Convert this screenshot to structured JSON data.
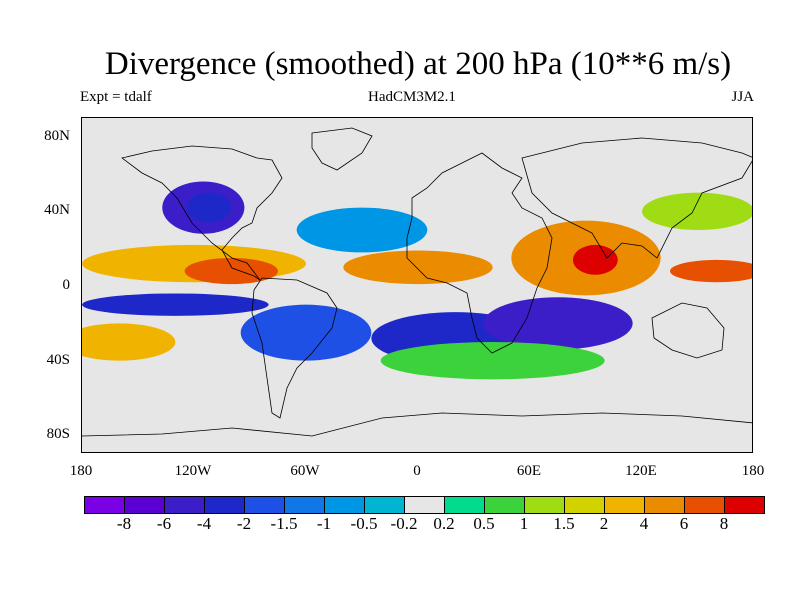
{
  "title": "Divergence (smoothed) at 200 hPa (10**6 m/s)",
  "experiment": "Expt = tdalf",
  "model": "HadCM3M2.1",
  "season": "JJA",
  "chart_data": {
    "type": "heatmap",
    "title": "Divergence (smoothed) at 200 hPa (10**6 m/s)",
    "x_range": [
      -180,
      180
    ],
    "y_range": [
      -90,
      90
    ],
    "lat_ticks": [
      {
        "value": 80,
        "label": "80N"
      },
      {
        "value": 40,
        "label": "40N"
      },
      {
        "value": 0,
        "label": "0"
      },
      {
        "value": -40,
        "label": "40S"
      },
      {
        "value": -80,
        "label": "80S"
      }
    ],
    "lon_ticks": [
      {
        "value": -180,
        "label": "180"
      },
      {
        "value": -120,
        "label": "120W"
      },
      {
        "value": -60,
        "label": "60W"
      },
      {
        "value": 0,
        "label": "0"
      },
      {
        "value": 60,
        "label": "60E"
      },
      {
        "value": 120,
        "label": "120E"
      },
      {
        "value": 180,
        "label": "180"
      }
    ],
    "levels": [
      {
        "color": "#7a00e6",
        "label": ""
      },
      {
        "color": "#5a00d2",
        "label": "-8"
      },
      {
        "color": "#3c1ec8",
        "label": "-6"
      },
      {
        "color": "#1e28c8",
        "label": "-4"
      },
      {
        "color": "#1e50e6",
        "label": "-2"
      },
      {
        "color": "#0f78e6",
        "label": "-1.5"
      },
      {
        "color": "#0096e6",
        "label": "-1"
      },
      {
        "color": "#00b4d2",
        "label": "-0.5"
      },
      {
        "color": "#e6e6e6",
        "label": "-0.2"
      },
      {
        "color": "#00dc8c",
        "label": "0.2"
      },
      {
        "color": "#3cd23c",
        "label": "0.5"
      },
      {
        "color": "#a0dc14",
        "label": "1"
      },
      {
        "color": "#d2d200",
        "label": "1.5"
      },
      {
        "color": "#f0b400",
        "label": "2"
      },
      {
        "color": "#eb8c00",
        "label": "4"
      },
      {
        "color": "#e65000",
        "label": "6"
      },
      {
        "color": "#dc0000",
        "label": "8"
      }
    ],
    "regions": [
      {
        "lon": -115,
        "lat": 42,
        "rx": 22,
        "ry": 14,
        "cat": 2
      },
      {
        "lon": -112,
        "lat": 42,
        "rx": 12,
        "ry": 8,
        "cat": 3
      },
      {
        "lon": -30,
        "lat": 30,
        "rx": 35,
        "ry": 12,
        "cat": 6
      },
      {
        "lon": -120,
        "lat": 12,
        "rx": 60,
        "ry": 10,
        "cat": 13
      },
      {
        "lon": -100,
        "lat": 8,
        "rx": 25,
        "ry": 7,
        "cat": 15
      },
      {
        "lon": -60,
        "lat": -25,
        "rx": 35,
        "ry": 15,
        "cat": 4
      },
      {
        "lon": -130,
        "lat": -10,
        "rx": 50,
        "ry": 6,
        "cat": 3
      },
      {
        "lon": 20,
        "lat": -28,
        "rx": 45,
        "ry": 14,
        "cat": 3
      },
      {
        "lon": 75,
        "lat": -20,
        "rx": 40,
        "ry": 14,
        "cat": 2
      },
      {
        "lon": 0,
        "lat": 10,
        "rx": 40,
        "ry": 9,
        "cat": 14
      },
      {
        "lon": 90,
        "lat": 15,
        "rx": 40,
        "ry": 20,
        "cat": 14
      },
      {
        "lon": 95,
        "lat": 14,
        "rx": 12,
        "ry": 8,
        "cat": 16
      },
      {
        "lon": 160,
        "lat": 8,
        "rx": 25,
        "ry": 6,
        "cat": 15
      },
      {
        "lon": 150,
        "lat": 40,
        "rx": 30,
        "ry": 10,
        "cat": 11
      },
      {
        "lon": -160,
        "lat": -30,
        "rx": 30,
        "ry": 10,
        "cat": 13
      },
      {
        "lon": 40,
        "lat": -40,
        "rx": 60,
        "ry": 10,
        "cat": 10
      }
    ]
  }
}
